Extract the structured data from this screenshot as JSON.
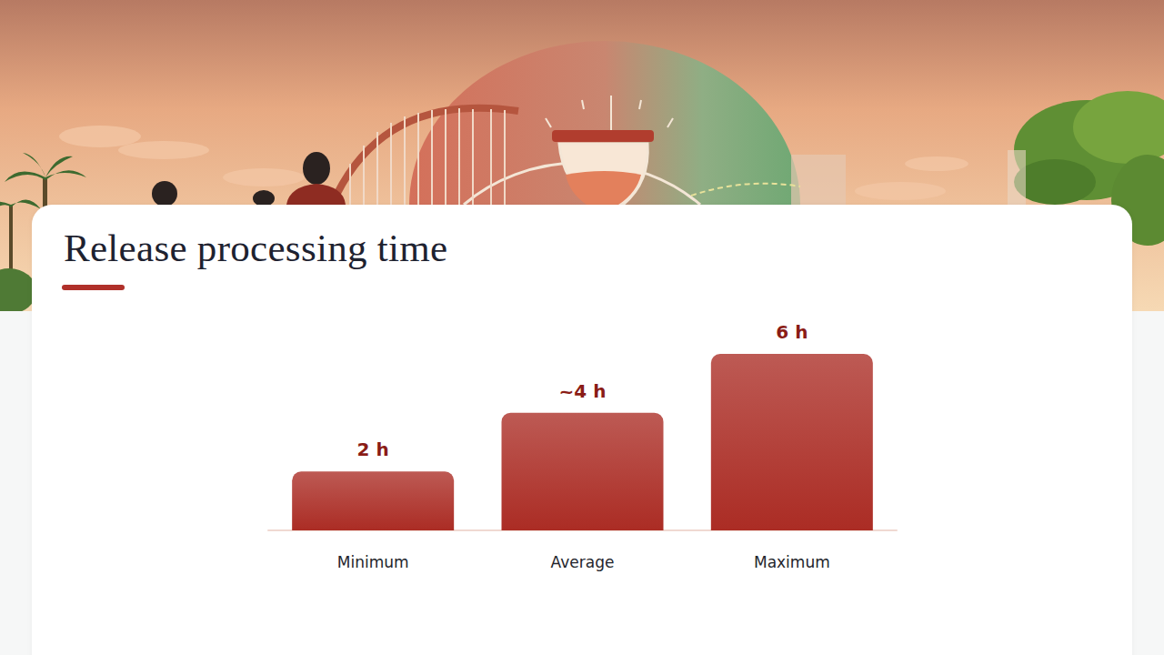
{
  "chart_data": {
    "type": "bar",
    "title": "Release processing time",
    "categories": [
      "Minimum",
      "Average",
      "Maximum"
    ],
    "values": [
      2,
      4,
      6
    ],
    "value_labels": [
      "2 h",
      "~4 h",
      "6 h"
    ],
    "color": "#ab2c24",
    "ylim": [
      0,
      6
    ],
    "grid": false,
    "data_labels": true,
    "tick_labels": "x"
  }
}
